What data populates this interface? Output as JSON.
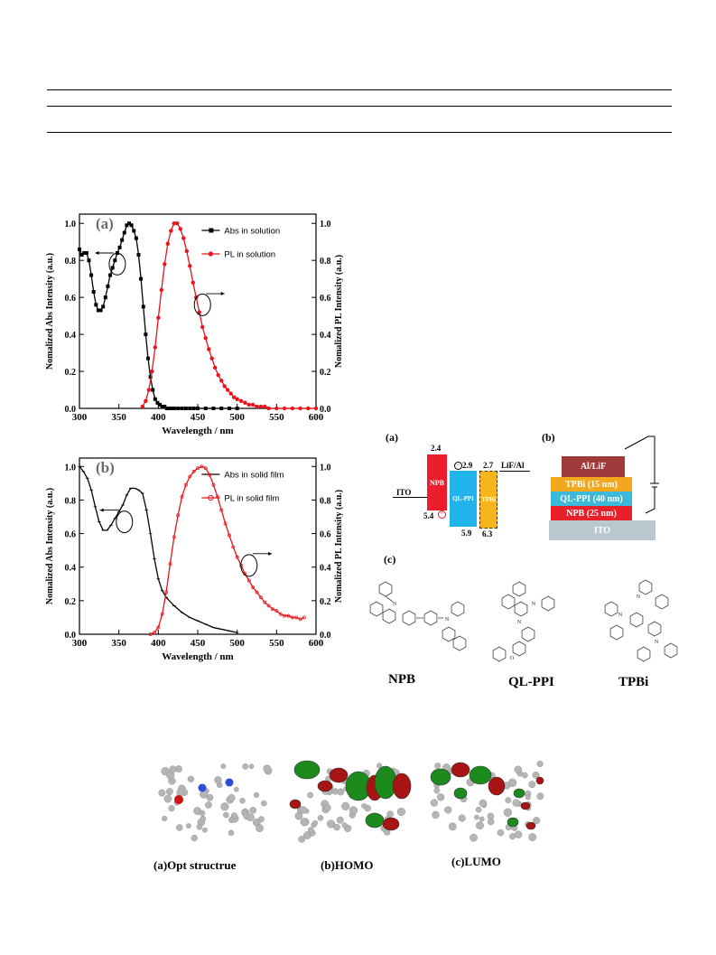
{
  "chart_data": [
    {
      "type": "line",
      "panel_label": "(a)",
      "xlabel": "Wavelength / nm",
      "ylabel_left": "Nomalized Abs Intensity (a.u.)",
      "ylabel_right": "Nomalized PL Intensity (a.u.)",
      "xlim": [
        300,
        600
      ],
      "ylim": [
        0,
        1.05
      ],
      "xticks": [
        "300",
        "350",
        "400",
        "450",
        "500",
        "550",
        "600"
      ],
      "yticks": [
        "0.0",
        "0.2",
        "0.4",
        "0.6",
        "0.8",
        "1.0"
      ],
      "legend_position": "top-right",
      "series": [
        {
          "name": "Abs in solution",
          "color": "#000000",
          "marker": "square",
          "x": [
            300,
            303,
            306,
            309,
            312,
            315,
            318,
            321,
            324,
            327,
            330,
            333,
            336,
            339,
            342,
            345,
            348,
            351,
            354,
            357,
            360,
            363,
            366,
            369,
            372,
            375,
            378,
            381,
            384,
            387,
            390,
            393,
            396,
            399,
            402,
            405,
            408,
            411,
            414,
            417,
            420,
            425,
            430,
            435,
            440,
            445,
            450,
            460,
            470,
            480,
            490,
            500
          ],
          "y": [
            0.86,
            0.83,
            0.84,
            0.84,
            0.8,
            0.72,
            0.63,
            0.56,
            0.53,
            0.53,
            0.55,
            0.6,
            0.66,
            0.72,
            0.76,
            0.8,
            0.84,
            0.87,
            0.91,
            0.95,
            0.99,
            1.0,
            0.99,
            0.96,
            0.92,
            0.83,
            0.7,
            0.55,
            0.4,
            0.27,
            0.17,
            0.1,
            0.05,
            0.03,
            0.02,
            0.01,
            0.01,
            0.0,
            0.0,
            0.0,
            0.0,
            0.0,
            0.0,
            0.0,
            0.0,
            0.0,
            0.0,
            0.0,
            0.0,
            0.0,
            0.0,
            0.0
          ]
        },
        {
          "name": "PL in solution",
          "color": "#e8131b",
          "marker": "circle",
          "x": [
            380,
            384,
            388,
            392,
            396,
            400,
            404,
            408,
            412,
            416,
            420,
            424,
            428,
            432,
            436,
            440,
            444,
            448,
            452,
            456,
            460,
            464,
            468,
            472,
            476,
            480,
            484,
            488,
            492,
            496,
            500,
            505,
            510,
            515,
            520,
            525,
            530,
            535,
            540,
            550,
            560,
            570,
            580,
            590,
            600
          ],
          "y": [
            0.01,
            0.04,
            0.1,
            0.2,
            0.33,
            0.49,
            0.64,
            0.78,
            0.89,
            0.96,
            1.0,
            1.0,
            0.97,
            0.92,
            0.85,
            0.77,
            0.68,
            0.6,
            0.52,
            0.44,
            0.38,
            0.32,
            0.27,
            0.22,
            0.18,
            0.15,
            0.12,
            0.1,
            0.08,
            0.06,
            0.05,
            0.04,
            0.03,
            0.02,
            0.02,
            0.01,
            0.01,
            0.01,
            0.0,
            0.0,
            0.0,
            0.0,
            0.0,
            0.0,
            0.0
          ]
        }
      ]
    },
    {
      "type": "line",
      "panel_label": "(b)",
      "xlabel": "Wavelength / nm",
      "ylabel_left": "Nomalized Abs Intensity (a.u.)",
      "ylabel_right": "Nomalized PL Intensity (a.u.)",
      "xlim": [
        300,
        600
      ],
      "ylim": [
        0,
        1.05
      ],
      "xticks": [
        "300",
        "350",
        "400",
        "450",
        "500",
        "550",
        "600"
      ],
      "yticks": [
        "0.0",
        "0.2",
        "0.4",
        "0.6",
        "0.8",
        "1.0"
      ],
      "legend_position": "top-right",
      "series": [
        {
          "name": "Abs in solid film",
          "color": "#000000",
          "marker": "cross",
          "x": [
            300,
            305,
            310,
            315,
            320,
            325,
            330,
            335,
            340,
            345,
            350,
            355,
            360,
            365,
            370,
            375,
            380,
            385,
            390,
            395,
            400,
            405,
            410,
            420,
            430,
            440,
            450,
            460,
            470,
            480,
            490,
            500
          ],
          "y": [
            1.0,
            0.97,
            0.93,
            0.86,
            0.76,
            0.67,
            0.62,
            0.62,
            0.65,
            0.69,
            0.73,
            0.77,
            0.83,
            0.87,
            0.87,
            0.86,
            0.84,
            0.74,
            0.6,
            0.45,
            0.33,
            0.26,
            0.22,
            0.17,
            0.13,
            0.1,
            0.08,
            0.06,
            0.04,
            0.03,
            0.02,
            0.01
          ]
        },
        {
          "name": "PL in solid film",
          "color": "#e8131b",
          "marker": "open-circle",
          "x": [
            390,
            395,
            400,
            405,
            410,
            415,
            420,
            425,
            430,
            435,
            440,
            445,
            450,
            455,
            460,
            465,
            470,
            475,
            480,
            485,
            490,
            495,
            500,
            505,
            510,
            515,
            520,
            525,
            530,
            535,
            540,
            545,
            550,
            555,
            560,
            565,
            570,
            575,
            580,
            585
          ],
          "y": [
            0.0,
            0.01,
            0.04,
            0.12,
            0.25,
            0.42,
            0.58,
            0.71,
            0.82,
            0.89,
            0.94,
            0.97,
            0.99,
            1.0,
            0.99,
            0.95,
            0.89,
            0.82,
            0.74,
            0.66,
            0.59,
            0.52,
            0.46,
            0.41,
            0.36,
            0.32,
            0.28,
            0.25,
            0.22,
            0.19,
            0.17,
            0.15,
            0.14,
            0.12,
            0.11,
            0.11,
            0.1,
            0.1,
            0.09,
            0.1
          ]
        }
      ]
    }
  ],
  "device": {
    "panel_a_label": "(a)",
    "panel_b_label": "(b)",
    "panel_c_label": "(c)",
    "ito_label": "ITO",
    "cathode_label": "LiF/Al",
    "npb_label": "NPB",
    "qlppi_label": "QL-PPI",
    "tpbi_label": "TPBi",
    "levels": {
      "npb_lumo": "2.4",
      "npb_homo": "5.4",
      "qlppi_lumo": "2.9",
      "qlppi_homo": "5.9",
      "tpbi_lumo": "2.7",
      "tpbi_homo": "6.3"
    },
    "stack": [
      {
        "label": "Al/LiF",
        "color": "#a0393a"
      },
      {
        "label": "TPBi (15 nm)",
        "color": "#f2a81d"
      },
      {
        "label": "QL-PPI (40 nm)",
        "color": "#3cb9d9"
      },
      {
        "label": "NPB (25 nm)",
        "color": "#e8202a"
      },
      {
        "label": "ITO",
        "color": "#b9c8cf"
      }
    ]
  },
  "molecules": [
    "NPB",
    "QL-PPI",
    "TPBi"
  ],
  "orbitals": [
    "(a)Opt structrue",
    "(b)HOMO",
    "(c)LUMO"
  ]
}
